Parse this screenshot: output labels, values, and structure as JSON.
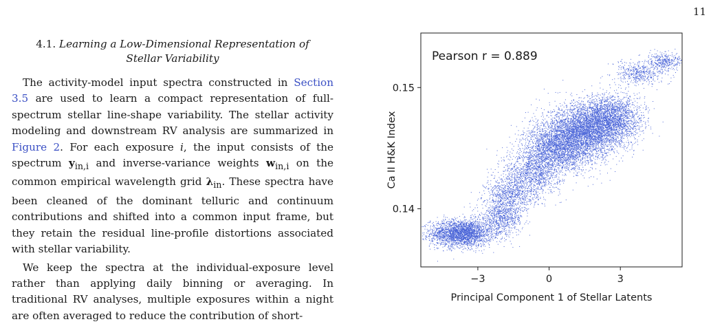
{
  "page_number": "11",
  "section": {
    "number": "4.1.",
    "title_line1": "Learning a Low-Dimensional Representation of",
    "title_line2": "Stellar Variability"
  },
  "paragraph1": {
    "t1": "The activity-model input spectra constructed in ",
    "link1": "Section 3.5",
    "t2": " are used to learn a compact representation of full-spectrum stellar line-shape variability. The stellar activity modeling and downstream RV analysis are summarized in ",
    "link2": "Figure 2",
    "t3": ". For each exposure ",
    "var_i": "i",
    "t4": ", the input consists of the spectrum ",
    "sym_y": "y",
    "sub_in_i_1": "in,i",
    "t5": " and inverse-variance weights ",
    "sym_w": "w",
    "sub_in_i_2": "in,i",
    "t6": " on the common empirical wavelength grid ",
    "sym_lambda": "λ",
    "sub_in": "in",
    "t7": ". These spectra have been cleaned of the dominant telluric and continuum contributions and shifted into a common input frame, but they retain the residual line-profile distortions associated with stellar variability."
  },
  "paragraph2": {
    "text": "We keep the spectra at the individual-exposure level rather than applying daily binning or averaging. In traditional RV analyses, multiple exposures within a night are often averaged to reduce the contribution of short-"
  },
  "chart_data": {
    "type": "scatter",
    "annotation": "Pearson r = 0.889",
    "xlabel": "Principal Component 1 of Stellar Latents",
    "ylabel": "Ca II H&K Index",
    "xlim": [
      -5.4,
      5.6
    ],
    "ylim": [
      0.1352,
      0.1545
    ],
    "xticks": [
      -3,
      0,
      3
    ],
    "xtick_labels": [
      "−3",
      "0",
      "3"
    ],
    "yticks": [
      0.14,
      0.15
    ],
    "ytick_labels": [
      "0.14",
      "0.15"
    ],
    "grid": false,
    "point_color": "#4a64d8",
    "clusters": [
      {
        "cx": -3.7,
        "cy": 0.138,
        "sx": 0.65,
        "sy": 0.00055,
        "n": 2600
      },
      {
        "cx": -2.0,
        "cy": 0.1393,
        "sx": 0.45,
        "sy": 0.0007,
        "n": 800
      },
      {
        "cx": -1.6,
        "cy": 0.1412,
        "sx": 0.55,
        "sy": 0.0007,
        "n": 750
      },
      {
        "cx": -0.7,
        "cy": 0.143,
        "sx": 0.6,
        "sy": 0.0009,
        "n": 1100
      },
      {
        "cx": 0.3,
        "cy": 0.145,
        "sx": 0.7,
        "sy": 0.001,
        "n": 2200
      },
      {
        "cx": 1.5,
        "cy": 0.1464,
        "sx": 0.8,
        "sy": 0.0011,
        "n": 3600
      },
      {
        "cx": 2.6,
        "cy": 0.1475,
        "sx": 0.65,
        "sy": 0.001,
        "n": 2000
      },
      {
        "cx": 3.8,
        "cy": 0.1512,
        "sx": 0.55,
        "sy": 0.00045,
        "n": 450
      },
      {
        "cx": 4.9,
        "cy": 0.1522,
        "sx": 0.4,
        "sy": 0.00035,
        "n": 350
      }
    ]
  }
}
